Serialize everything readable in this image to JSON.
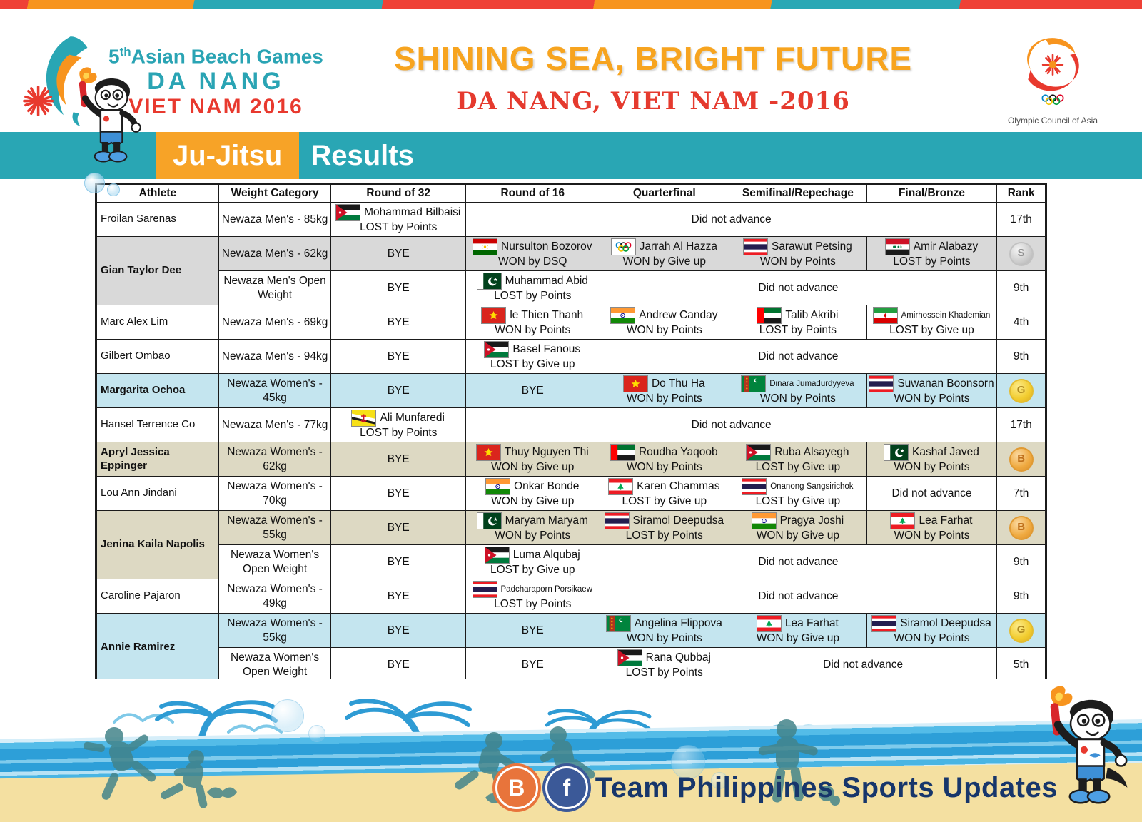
{
  "header": {
    "logo_left": {
      "prefix": "5",
      "sup": "th",
      "name": "Asian Beach Games",
      "city": "DA NANG",
      "country_year": "VIET NAM 2016"
    },
    "title_line1": "SHINING SEA, BRIGHT FUTURE",
    "title_line2": "DA NANG, VIET NAM -2016",
    "logo_right_caption": "Olympic Council of Asia"
  },
  "banner": {
    "sport": "Ju-Jitsu",
    "label": "Results"
  },
  "table": {
    "columns": [
      "Athlete",
      "Weight Category",
      "Round of 32",
      "Round of 16",
      "Quarterfinal",
      "Semifinal/Repechage",
      "Final/Bronze",
      "Rank"
    ],
    "col_widths": [
      "12.9%",
      "11.85%",
      "14.17%",
      "14.09%",
      "13.64%",
      "14.47%",
      "13.72%",
      "5.16%"
    ],
    "bye_label": "BYE",
    "advance_label": "Did not advance",
    "rows": [
      {
        "athlete": "Froilan Sarenas",
        "rowspan": 1,
        "bold": false,
        "bg": "white",
        "weight": "Newaza Men's - 85kg",
        "cells": [
          {
            "type": "match",
            "flag": "jordan",
            "name": "Mohammad Bilbaisi",
            "result": "LOST by Points"
          },
          {
            "type": "advance",
            "span": 4
          }
        ],
        "rank": {
          "type": "text",
          "value": "17th"
        }
      },
      {
        "athlete": "Gian Taylor Dee",
        "rowspan": 2,
        "bold": true,
        "bg": "grey",
        "weight": "Newaza Men's - 62kg",
        "cells": [
          {
            "type": "bye"
          },
          {
            "type": "match",
            "flag": "tajikistan",
            "name": "Nursulton Bozorov",
            "result": "WON by DSQ"
          },
          {
            "type": "match",
            "flag": "olympic",
            "name": "Jarrah Al Hazza",
            "result": "WON by Give up"
          },
          {
            "type": "match",
            "flag": "thailand",
            "name": "Sarawut Petsing",
            "result": "WON by Points"
          },
          {
            "type": "match",
            "flag": "iraq",
            "name": "Amir Alabazy",
            "result": "LOST by Points"
          }
        ],
        "rank": {
          "type": "medal",
          "medal": "silver"
        }
      },
      {
        "sub": true,
        "bg": "white",
        "weight": "Newaza Men's Open Weight",
        "cells": [
          {
            "type": "bye"
          },
          {
            "type": "match",
            "flag": "pakistan",
            "name": "Muhammad Abid",
            "result": "LOST by Points"
          },
          {
            "type": "advance",
            "span": 3
          }
        ],
        "rank": {
          "type": "text",
          "value": "9th"
        }
      },
      {
        "athlete": "Marc Alex Lim",
        "rowspan": 1,
        "bold": false,
        "bg": "white",
        "weight": "Newaza Men's - 69kg",
        "cells": [
          {
            "type": "bye"
          },
          {
            "type": "match",
            "flag": "vietnam",
            "name": "le Thien Thanh",
            "result": "WON by Points"
          },
          {
            "type": "match",
            "flag": "india",
            "name": "Andrew Canday",
            "result": "WON by Points"
          },
          {
            "type": "match",
            "flag": "uae",
            "name": "Talib Akribi",
            "result": "LOST by Points"
          },
          {
            "type": "match",
            "flag": "iran",
            "name": "Amirhossein Khademian",
            "result": "LOST by Give up"
          }
        ],
        "rank": {
          "type": "text",
          "value": "4th"
        }
      },
      {
        "athlete": "Gilbert Ombao",
        "rowspan": 1,
        "bold": false,
        "bg": "white",
        "weight": "Newaza Men's - 94kg",
        "cells": [
          {
            "type": "bye"
          },
          {
            "type": "match",
            "flag": "jordan",
            "name": "Basel Fanous",
            "result": "LOST by Give up"
          },
          {
            "type": "advance",
            "span": 3
          }
        ],
        "rank": {
          "type": "text",
          "value": "9th"
        }
      },
      {
        "athlete": "Margarita Ochoa",
        "rowspan": 1,
        "bold": true,
        "bg": "blue",
        "weight": "Newaza Women's - 45kg",
        "cells": [
          {
            "type": "bye"
          },
          {
            "type": "bye"
          },
          {
            "type": "match",
            "flag": "vietnam",
            "name": "Do Thu Ha",
            "result": "WON by Points"
          },
          {
            "type": "match",
            "flag": "turkmenistan",
            "name": "Dinara Jumadurdyyeva",
            "result": "WON by Points"
          },
          {
            "type": "match",
            "flag": "thailand",
            "name": "Suwanan Boonsorn",
            "result": "WON by Points"
          }
        ],
        "rank": {
          "type": "medal",
          "medal": "gold"
        }
      },
      {
        "athlete": "Hansel Terrence Co",
        "rowspan": 1,
        "bold": false,
        "bg": "white",
        "weight": "Newaza Men's - 77kg",
        "cells": [
          {
            "type": "match",
            "flag": "brunei",
            "name": "Ali Munfaredi",
            "result": "LOST by Points"
          },
          {
            "type": "advance",
            "span": 4
          }
        ],
        "rank": {
          "type": "text",
          "value": "17th"
        }
      },
      {
        "athlete": "Apryl Jessica Eppinger",
        "rowspan": 1,
        "bold": true,
        "bg": "tan",
        "weight": "Newaza Women's - 62kg",
        "cells": [
          {
            "type": "bye"
          },
          {
            "type": "match",
            "flag": "vietnam",
            "name": "Thuy Nguyen Thi",
            "result": "WON by Give up"
          },
          {
            "type": "match",
            "flag": "uae",
            "name": "Roudha Yaqoob",
            "result": "WON by Points"
          },
          {
            "type": "match",
            "flag": "jordan",
            "name": "Ruba Alsayegh",
            "result": "LOST by Give up"
          },
          {
            "type": "match",
            "flag": "pakistan",
            "name": "Kashaf Javed",
            "result": "WON by Points"
          }
        ],
        "rank": {
          "type": "medal",
          "medal": "bronze"
        }
      },
      {
        "athlete": "Lou Ann Jindani",
        "rowspan": 1,
        "bold": false,
        "bg": "white",
        "weight": "Newaza Women's - 70kg",
        "cells": [
          {
            "type": "bye"
          },
          {
            "type": "match",
            "flag": "india",
            "name": "Onkar Bonde",
            "result": "WON by Give up"
          },
          {
            "type": "match",
            "flag": "lebanon",
            "name": "Karen Chammas",
            "result": "LOST by Give up"
          },
          {
            "type": "match",
            "flag": "thailand",
            "name": "Onanong Sangsirichok",
            "result": "LOST by Give up"
          },
          {
            "type": "advance",
            "span": 1
          }
        ],
        "rank": {
          "type": "text",
          "value": "7th"
        }
      },
      {
        "athlete": "Jenina Kaila Napolis",
        "rowspan": 2,
        "bold": true,
        "bg": "tan",
        "weight": "Newaza Women's - 55kg",
        "cells": [
          {
            "type": "bye"
          },
          {
            "type": "match",
            "flag": "pakistan",
            "name": "Maryam Maryam",
            "result": "WON by Points"
          },
          {
            "type": "match",
            "flag": "thailand",
            "name": "Siramol Deepudsa",
            "result": "LOST by Points"
          },
          {
            "type": "match",
            "flag": "india",
            "name": "Pragya Joshi",
            "result": "WON by Give up"
          },
          {
            "type": "match",
            "flag": "lebanon",
            "name": "Lea Farhat",
            "result": "WON by Points"
          }
        ],
        "rank": {
          "type": "medal",
          "medal": "bronze"
        }
      },
      {
        "sub": true,
        "bg": "white",
        "weight": "Newaza Women's Open Weight",
        "cells": [
          {
            "type": "bye"
          },
          {
            "type": "match",
            "flag": "jordan",
            "name": "Luma Alqubaj",
            "result": "LOST by Give up"
          },
          {
            "type": "advance",
            "span": 3
          }
        ],
        "rank": {
          "type": "text",
          "value": "9th"
        }
      },
      {
        "athlete": "Caroline Pajaron",
        "rowspan": 1,
        "bold": false,
        "bg": "white",
        "weight": "Newaza Women's - 49kg",
        "cells": [
          {
            "type": "bye"
          },
          {
            "type": "match",
            "flag": "thailand",
            "name": "Padcharaporn Porsikaew",
            "result": "LOST by Points"
          },
          {
            "type": "advance",
            "span": 3
          }
        ],
        "rank": {
          "type": "text",
          "value": "9th"
        }
      },
      {
        "athlete": "Annie Ramirez",
        "rowspan": 2,
        "bold": true,
        "bg": "blue",
        "weight": "Newaza Women's - 55kg",
        "cells": [
          {
            "type": "bye"
          },
          {
            "type": "bye"
          },
          {
            "type": "match",
            "flag": "turkmenistan",
            "name": "Angelina Flippova",
            "result": "WON by Points"
          },
          {
            "type": "match",
            "flag": "lebanon",
            "name": "Lea Farhat",
            "result": "WON by Give up"
          },
          {
            "type": "match",
            "flag": "thailand",
            "name": "Siramol Deepudsa",
            "result": "WON by Points"
          }
        ],
        "rank": {
          "type": "medal",
          "medal": "gold"
        }
      },
      {
        "sub": true,
        "bg": "white",
        "weight": "Newaza Women's Open Weight",
        "cells": [
          {
            "type": "bye"
          },
          {
            "type": "bye"
          },
          {
            "type": "match",
            "flag": "jordan",
            "name": "Rana Qubbaj",
            "result": "LOST by Points"
          },
          {
            "type": "advance",
            "span": 2
          }
        ],
        "rank": {
          "type": "text",
          "value": "5th"
        }
      }
    ]
  },
  "footer": {
    "caption": "Team Philippines Sports Updates",
    "icons": [
      "blogger-icon",
      "facebook-icon"
    ]
  },
  "colors": {
    "teal_band": "#29A6B4",
    "orange_accent": "#F7A327",
    "red_accent": "#EF4136",
    "title_orange": "#F7A41F",
    "title_red": "#E53A2E",
    "row_grey": "#D9D9D9",
    "row_tan": "#DDD9C3",
    "row_blue": "#C4E5EF",
    "sand": "#F4E0A1",
    "sea_blue": "#2D9FD8",
    "caption_navy": "#17366B",
    "medal_gold": "#F2CC2E",
    "medal_silver": "#CCCCCC",
    "medal_bronze": "#EFA93F"
  }
}
